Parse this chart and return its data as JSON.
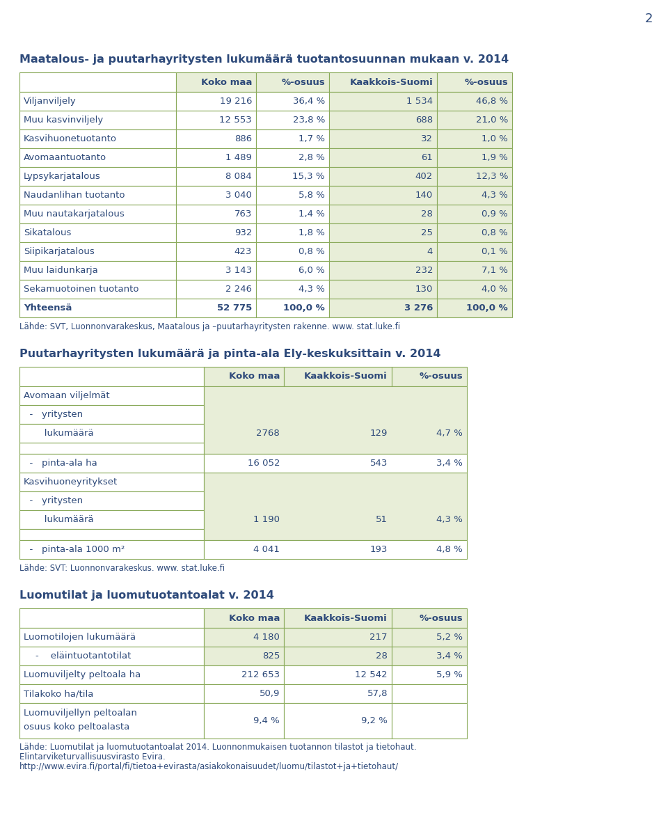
{
  "page_number": "2",
  "title1": "Maatalous- ja puutarhayritysten lukumäärä tuotantosuunnan mukaan v. 2014",
  "table1_header": [
    "",
    "Koko maa",
    "%-osuus",
    "Kaakkois-Suomi",
    "%-osuus"
  ],
  "table1_rows": [
    [
      "Viljanviljely",
      "19 216",
      "36,4 %",
      "1 534",
      "46,8 %"
    ],
    [
      "Muu kasvinviljely",
      "12 553",
      "23,8 %",
      "688",
      "21,0 %"
    ],
    [
      "Kasvihuonetuotanto",
      "886",
      "1,7 %",
      "32",
      "1,0 %"
    ],
    [
      "Avomaantuotanto",
      "1 489",
      "2,8 %",
      "61",
      "1,9 %"
    ],
    [
      "Lypsykarjatalous",
      "8 084",
      "15,3 %",
      "402",
      "12,3 %"
    ],
    [
      "Naudanlihan tuotanto",
      "3 040",
      "5,8 %",
      "140",
      "4,3 %"
    ],
    [
      "Muu nautakarjatalous",
      "763",
      "1,4 %",
      "28",
      "0,9 %"
    ],
    [
      "Sikatalous",
      "932",
      "1,8 %",
      "25",
      "0,8 %"
    ],
    [
      "Siipikarjatalous",
      "423",
      "0,8 %",
      "4",
      "0,1 %"
    ],
    [
      "Muu laidunkarja",
      "3 143",
      "6,0 %",
      "232",
      "7,1 %"
    ],
    [
      "Sekamuotoinen tuotanto",
      "2 246",
      "4,3 %",
      "130",
      "4,0 %"
    ],
    [
      "Yhteensä",
      "52 775",
      "100,0 %",
      "3 276",
      "100,0 %"
    ]
  ],
  "table1_source": "Lähde: SVT, Luonnonvarakeskus, Maatalous ja –puutarhayritysten rakenne. www. stat.luke.fi",
  "title2": "Puutarhayritysten lukumäärä ja pinta-ala Ely-keskuksittain v. 2014",
  "table2_header": [
    "",
    "Koko maa",
    "Kaakkois-Suomi",
    "%-osuus"
  ],
  "table2_source": "Lähde: SVT: Luonnonvarakeskus. www. stat.luke.fi",
  "title3": "Luomutilat ja luomutuotantoalat v. 2014",
  "table3_header": [
    "",
    "Koko maa",
    "Kaakkois-Suomi",
    "%-osuus"
  ],
  "table3_rows": [
    [
      "Luomotilojen lukumäärä",
      "4 180",
      "217",
      "5,2 %"
    ],
    [
      "    -    eläintuotantotilat",
      "825",
      "28",
      "3,4 %"
    ],
    [
      "Luomuviljelty peltoala ha",
      "212 653",
      "12 542",
      "5,9 %"
    ],
    [
      "Tilakoko ha/tila",
      "50,9",
      "57,8",
      ""
    ],
    [
      "Luomuviljellyn peltoalan\nosuus koko peltoalasta",
      "9,4 %",
      "9,2 %",
      ""
    ]
  ],
  "table3_source1": "Lähde: Luomutilat ja luomutuotantoalat 2014. Luonnonmukaisen tuotannon tilastot ja tietohaut.",
  "table3_source2": "Elintarviketurvallisuusvirasto Evira.",
  "table3_source3": "http://www.evira.fi/portal/fi/tietoa+evirasta/asiakokonaisuudet/luomu/tilastot+ja+tietohaut/",
  "header_bg": "#e8eed8",
  "cell_bg_white": "#ffffff",
  "border_color": "#8aaa5a",
  "text_color": "#2e4a7a",
  "title_color": "#2e4a7a"
}
